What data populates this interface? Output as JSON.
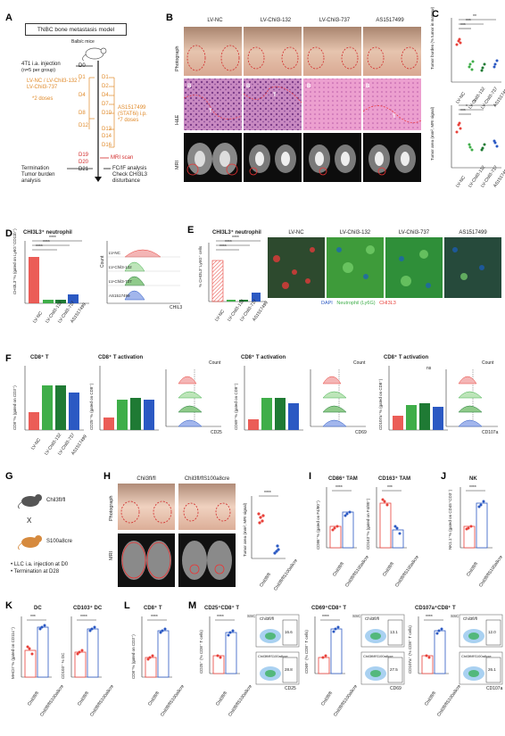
{
  "panels": {
    "A": {
      "label": "A",
      "title": "TNBC bone metastasis model",
      "mouse": "Balb/c mice",
      "injection": "4T1 i.a. injection",
      "injection_n": "(n=5 per group)",
      "days": [
        "D0",
        "D1",
        "D2",
        "D4",
        "D7",
        "D8",
        "D10",
        "D12",
        "D13",
        "D14",
        "D16",
        "D19",
        "D20",
        "D21"
      ],
      "lv_groups": "LV-NC / LV-Chil3-132 / LV-Chil3-737",
      "lv_doses": "*2 doses",
      "as_drug": "AS1517499",
      "as_route": "(STAT6i) i.p.",
      "as_doses": "*7 doses",
      "mri": "MRI scan",
      "termination": "Termination",
      "tumor_burden": "Tumor burden",
      "analysis": "analysis",
      "fcif": "FC/IF analysis",
      "check": "Check CHI3L3",
      "disturbance": "disturbance"
    },
    "B": {
      "label": "B",
      "groups": [
        "LV-NC",
        "LV-Chil3-132",
        "LV-Chil3-737",
        "AS1517499"
      ],
      "rows": [
        "Photograph",
        "H&E",
        "MRI"
      ],
      "he_marks": [
        "B",
        "T"
      ]
    },
    "C": {
      "label": "C",
      "ylabel_top": "Tumor burden (% tumor in marrow)",
      "ylabel_bot": "Tumor area (mm², MRI signal)",
      "sig": [
        "***",
        "**",
        "***",
        "*"
      ],
      "xcats": [
        "LV-NC",
        "LV-Chil3-132",
        "LV-Chil3-737",
        "AS1517499"
      ]
    },
    "D": {
      "label": "D",
      "title": "CHI3L3⁺ neutrophil",
      "ylabel": "CHI3L3⁺% (gated on Ly6G⁺CD11b⁺)",
      "sig": [
        "****",
        "****",
        "****"
      ],
      "xcats": [
        "LV-NC",
        "LV-Chil3-132",
        "LV-Chil3-737",
        "AS1517499"
      ],
      "flow_rows": [
        "LV-NC",
        "LV-Chil3-132",
        "LV-Chil3-737",
        "AS1517499"
      ],
      "flow_axis": "CHIL3",
      "flow_count": "Count"
    },
    "E": {
      "label": "E",
      "title": "CHI3L3⁺ neutrophil",
      "ylabel": "% CHI3L3⁺Ly6G⁺ cells",
      "sig": [
        "****",
        "****",
        "****"
      ],
      "xcats": [
        "LV-NC",
        "LV-Chil3-132",
        "LV-Chil3-737",
        "AS1517499"
      ],
      "if_groups": [
        "LV-NC",
        "LV-Chil3-132",
        "LV-Chil3-737",
        "AS1517499"
      ],
      "legend_dapi": "DAPI",
      "legend_neut": "Neutrophil (Ly6G)",
      "legend_chi": "CHI3L3"
    },
    "F": {
      "label": "F",
      "titles": [
        "CD8⁺ T",
        "CD8⁺ T activation",
        "CD8⁺ T activation",
        "CD8⁺ T activation"
      ],
      "ylabels": [
        "CD8⁺% (gated on CD3⁺)",
        "CD25⁺% (gated on CD8⁺)",
        "CD69⁺% (gated on CD8⁺)",
        "CD107a⁺% (gated on CD8⁺)"
      ],
      "flow_axes": [
        "CD25",
        "CD69",
        "CD107a"
      ],
      "flow_rows": [
        "LV-NC",
        "LV-Chil3-132",
        "LV-Chil3-737",
        "AS1517499"
      ],
      "flow_count": "Count",
      "ns": "ns",
      "xcats": [
        "LV-NC",
        "LV-Chil3-132",
        "LV-Chil3-737",
        "AS1517499"
      ]
    },
    "G": {
      "label": "G",
      "mouse1": "Chil3fl/fl",
      "cross": "X",
      "mouse2": "S100a8cre",
      "note1": "LLC i.a. injection at D0",
      "note2": "Termination at D28"
    },
    "H": {
      "label": "H",
      "groups": [
        "Chil3fl/fl",
        "Chil3fl/flS100a8cre"
      ],
      "rows": [
        "Photograph",
        "MRI"
      ],
      "ylabel": "Tumor area (mm², MRI signal)",
      "sig": "****",
      "xcats": [
        "Chil3fl/fl",
        "Chil3fl/flS100a8cre"
      ]
    },
    "I": {
      "label": "I",
      "titles": [
        "CD86⁺ TAM",
        "CD163⁺ TAM"
      ],
      "ylabels": [
        "CD86⁺% (gated on F4/80⁺)",
        "CD163⁺% (gated on F4/80⁺)"
      ],
      "sig": [
        "****",
        "***"
      ],
      "xcats": [
        "Chil3fl/fl",
        "Chil3fl/flS100a8cre"
      ]
    },
    "J": {
      "label": "J",
      "title": "NK",
      "ylabel": "NK1.1⁺% (gated on CD45⁺CD3⁻)",
      "sig": "****",
      "xcats": [
        "Chil3fl/fl",
        "Chil3fl/flS100a8cre"
      ]
    },
    "K": {
      "label": "K",
      "titles": [
        "DC",
        "CD103⁺ DC"
      ],
      "ylabels": [
        "MHCII⁺% (gated on CD11c⁺)",
        "CD103⁺ % DC"
      ],
      "sig": [
        "***",
        "****"
      ],
      "xcats": [
        "Chil3fl/fl",
        "Chil3fl/flS100a8cre"
      ]
    },
    "L": {
      "label": "L",
      "title": "CD8⁺ T",
      "ylabel": "CD8⁺% (gated on CD3⁺)",
      "sig": "****",
      "xcats": [
        "Chil3fl/fl",
        "Chil3fl/flS100a8cre"
      ]
    },
    "M": {
      "label": "M",
      "titles": [
        "CD25⁺CD8⁺ T",
        "CD69⁺CD8⁺ T",
        "CD107a⁺CD8⁺ T"
      ],
      "ylabels": [
        "CD25⁺ (% CD8⁺ T cells)",
        "CD69⁺ (% CD8⁺ T cells)",
        "CD107a⁺ (% CD8⁺ T cells)"
      ],
      "sig": [
        "****",
        "****",
        "****"
      ],
      "flow_axes": [
        "CD25",
        "CD69",
        "CD107a"
      ],
      "flow_groups": [
        "Chil3fl/fl",
        "Chil3fl/flS100a8cre"
      ],
      "flow_values": [
        [
          "16.6",
          "28.8"
        ],
        [
          "13.1",
          "27.5"
        ],
        [
          "12.0",
          "26.1"
        ]
      ],
      "ssc": "SSC",
      "xcats": [
        "Chil3fl/fl",
        "Chil3fl/flS100a8cre"
      ]
    }
  },
  "colors": {
    "red": "#e8413a",
    "green": "#3fae49",
    "darkgreen": "#1f7a34",
    "blue": "#2b59c3",
    "orange": "#e08a2a"
  }
}
